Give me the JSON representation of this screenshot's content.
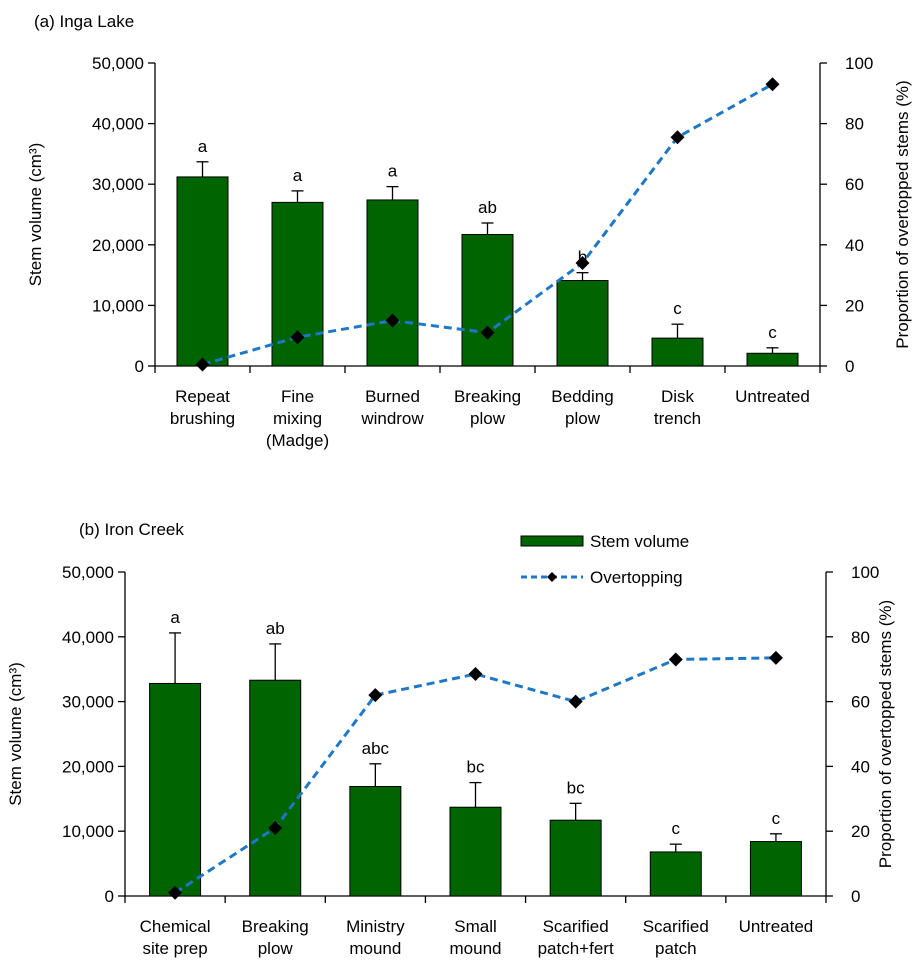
{
  "chart_data": [
    {
      "type": "bar",
      "title": "(a) Inga Lake",
      "ylabel": "Stem volume (cm³)",
      "y2label": "Proportion of overtopped stems (%)",
      "ylim": [
        0,
        50000
      ],
      "y2lim": [
        0,
        100
      ],
      "yticks": [
        "0",
        "10,000",
        "20,000",
        "30,000",
        "40,000",
        "50,000"
      ],
      "y2ticks": [
        "0",
        "20",
        "40",
        "60",
        "80",
        "100"
      ],
      "categories": [
        [
          "Repeat",
          "brushing"
        ],
        [
          "Fine",
          "mixing",
          "(Madge)"
        ],
        [
          "Burned",
          "windrow"
        ],
        [
          "Breaking",
          "plow"
        ],
        [
          "Bedding",
          "plow"
        ],
        [
          "Disk",
          "trench"
        ],
        [
          "Untreated"
        ]
      ],
      "series": [
        {
          "name": "Stem volume",
          "type": "bar",
          "axis": "left",
          "color": "#006400",
          "values": [
            31200,
            27000,
            27400,
            21700,
            14100,
            4600,
            2100
          ],
          "error": [
            2500,
            1900,
            2200,
            1900,
            1300,
            2300,
            900
          ],
          "letters": [
            "a",
            "a",
            "a",
            "ab",
            "b",
            "c",
            "c"
          ]
        },
        {
          "name": "Overtopping",
          "type": "line",
          "axis": "right",
          "color": "#1F77C8",
          "values": [
            0.5,
            9.5,
            15,
            11,
            34,
            75.5,
            93
          ]
        }
      ],
      "legend": "none"
    },
    {
      "type": "bar",
      "title": "(b) Iron Creek",
      "ylabel": "Stem volume (cm³)",
      "y2label": "Proportion of overtopped stems (%)",
      "ylim": [
        0,
        50000
      ],
      "y2lim": [
        0,
        100
      ],
      "yticks": [
        "0",
        "10,000",
        "20,000",
        "30,000",
        "40,000",
        "50,000"
      ],
      "y2ticks": [
        "0",
        "20",
        "40",
        "60",
        "80",
        "100"
      ],
      "categories": [
        [
          "Chemical",
          "site prep"
        ],
        [
          "Breaking",
          "plow"
        ],
        [
          "Ministry",
          "mound"
        ],
        [
          "Small",
          "mound"
        ],
        [
          "Scarified",
          "patch+fert"
        ],
        [
          "Scarified",
          "patch"
        ],
        [
          "Untreated"
        ]
      ],
      "series": [
        {
          "name": "Stem volume",
          "type": "bar",
          "axis": "left",
          "color": "#006400",
          "values": [
            32800,
            33300,
            16900,
            13700,
            11700,
            6800,
            8400
          ],
          "error": [
            7800,
            5600,
            3500,
            3800,
            2600,
            1200,
            1200
          ],
          "letters": [
            "a",
            "ab",
            "abc",
            "bc",
            "bc",
            "c",
            "c"
          ]
        },
        {
          "name": "Overtopping",
          "type": "line",
          "axis": "right",
          "color": "#1F77C8",
          "values": [
            1,
            21,
            62,
            68.5,
            60,
            73,
            73.5
          ]
        }
      ],
      "legend": "top-right"
    }
  ]
}
